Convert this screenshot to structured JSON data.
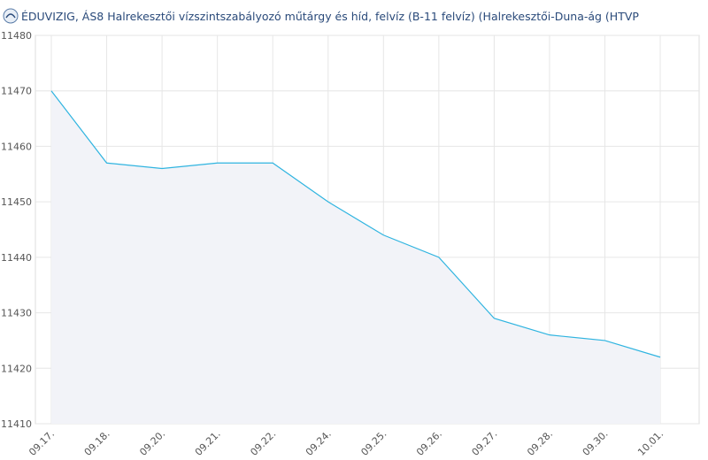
{
  "chart_data": {
    "type": "line",
    "title": "ÉDUVIZIG, ÁS8 Halrekesztői vízszintszabályozó  műtárgy és híd, felvíz (B-11 felvíz) (Halrekesztői-Duna-ág (HTVP",
    "categories": [
      "09.17.",
      "09.18.",
      "09.20.",
      "09.21.",
      "09.22.",
      "09.24.",
      "09.25.",
      "09.26.",
      "09.27.",
      "09.28.",
      "09.30.",
      "10.01."
    ],
    "values": [
      11470,
      11457,
      11456,
      11457,
      11457,
      11450,
      11444,
      11440,
      11429,
      11426,
      11425,
      11422
    ],
    "color": "#2fb4e0",
    "area_color": "#f2f3f8",
    "ylim": [
      11410,
      11480
    ],
    "yticks": [
      11410,
      11420,
      11430,
      11440,
      11450,
      11460,
      11470,
      11480
    ],
    "grid": true
  }
}
